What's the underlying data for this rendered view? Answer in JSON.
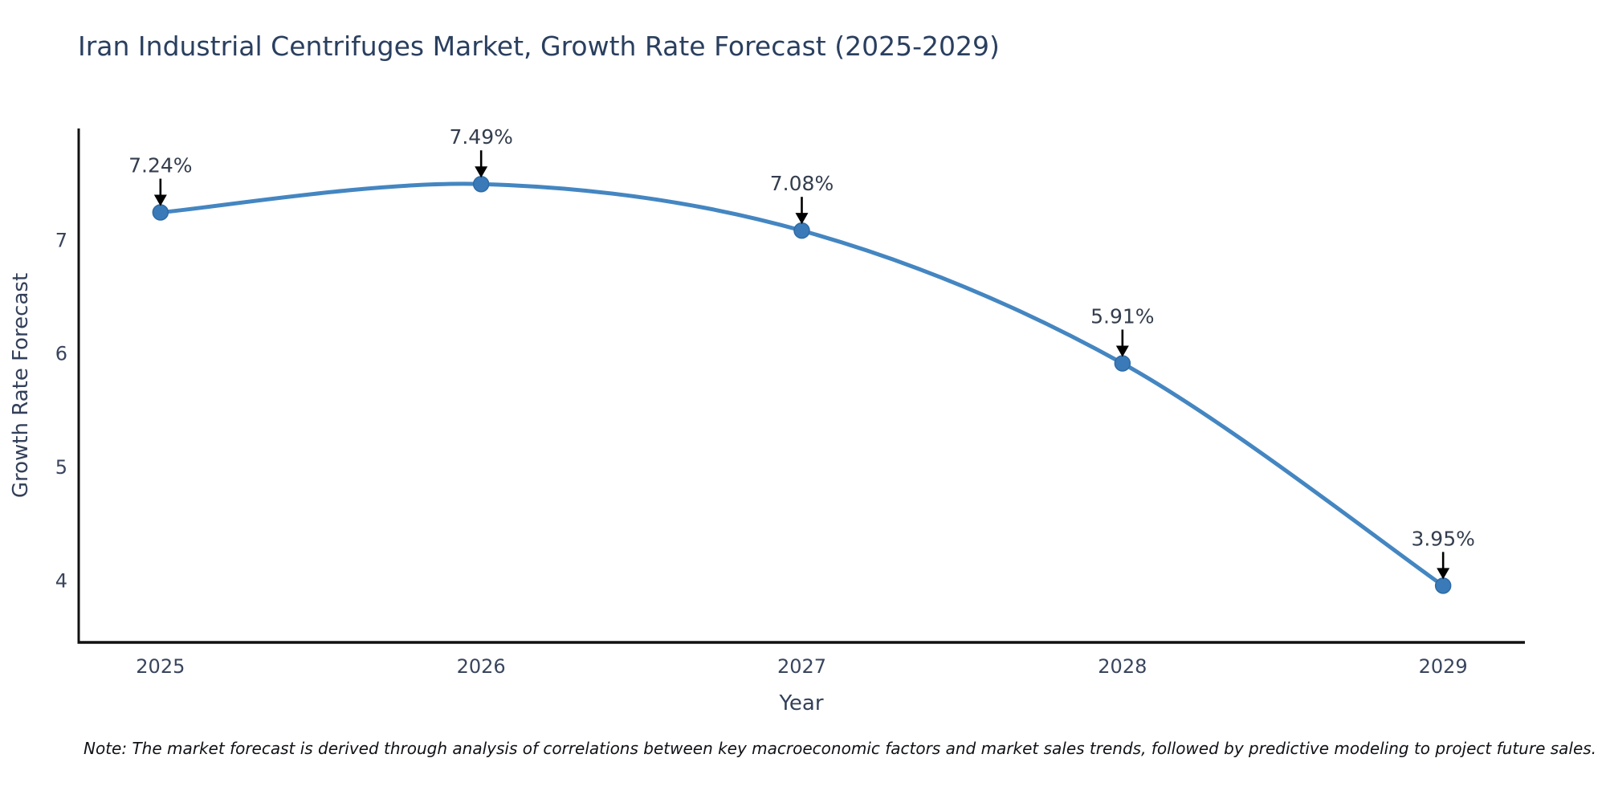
{
  "figure": {
    "title": "Iran Industrial Centrifuges Market, Growth Rate Forecast (2025-2029)",
    "note": "Note: The market forecast is derived through analysis of correlations between key macroeconomic factors and market sales trends, followed by predictive modeling to project future sales."
  },
  "chart_data": {
    "type": "line",
    "title": "Iran Industrial Centrifuges Market, Growth Rate Forecast (2025-2029)",
    "xlabel": "Year",
    "ylabel": "Growth Rate Forecast",
    "x": [
      2025,
      2026,
      2027,
      2028,
      2029
    ],
    "values": [
      7.24,
      7.49,
      7.08,
      5.91,
      3.95
    ],
    "point_labels": [
      "7.24%",
      "7.49%",
      "7.08%",
      "5.91%",
      "3.95%"
    ],
    "xticks": [
      "2025",
      "2026",
      "2027",
      "2028",
      "2029"
    ],
    "yticks": [
      4,
      5,
      6,
      7
    ],
    "xlim": [
      2024.745,
      2029.255
    ],
    "ylim": [
      3.45,
      7.98
    ],
    "grid": false,
    "legend": null,
    "colors": {
      "line": "#4486c1",
      "marker_fill": "#3a7ab8",
      "marker_edge": "#2e6ba6",
      "annotation_arrow": "#000000",
      "annotation_text": "#333d4d",
      "axis_line": "#111111",
      "tick_text": "#39455e",
      "title_text": "#2a3f5f",
      "background": "#ffffff"
    }
  }
}
